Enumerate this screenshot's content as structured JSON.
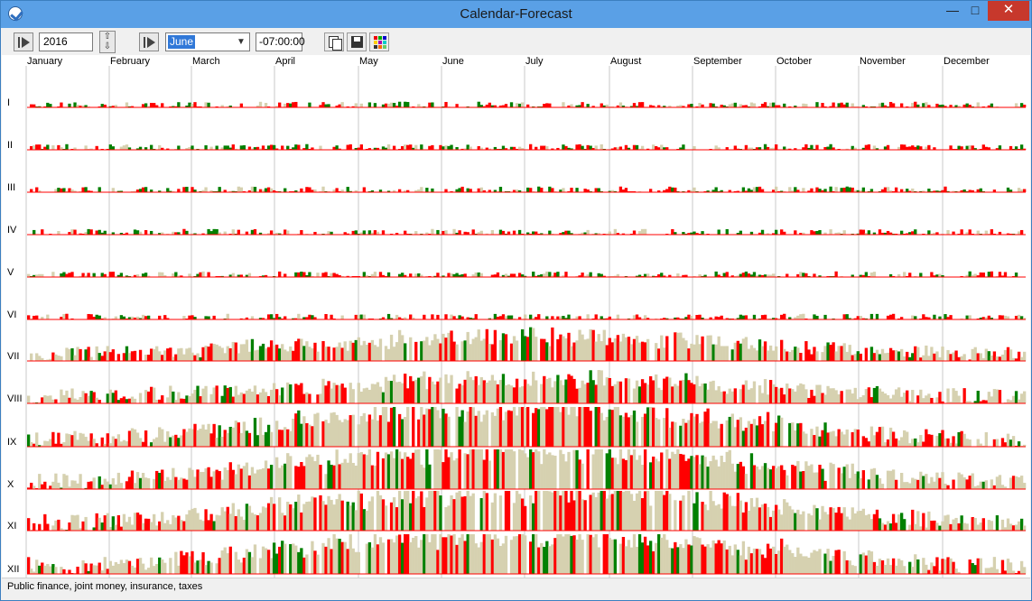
{
  "window": {
    "title": "Calendar-Forecast",
    "minimize": "—",
    "maximize": "□",
    "close": "✕"
  },
  "toolbar": {
    "year": "2016",
    "year_spin_up": "⇧",
    "year_spin_down": "⇩",
    "month": "June",
    "offset": "-07:00:00",
    "icons": [
      "play-icon",
      "play-icon",
      "copy-icon",
      "save-icon",
      "color-grid-icon"
    ]
  },
  "chart_data": {
    "type": "bar",
    "months": [
      "January",
      "February",
      "March",
      "April",
      "May",
      "June",
      "July",
      "August",
      "September",
      "October",
      "November",
      "December"
    ],
    "rows": [
      "I",
      "II",
      "III",
      "IV",
      "V",
      "VI",
      "VII",
      "VIII",
      "IX",
      "X",
      "XI",
      "XII"
    ],
    "series_colors": {
      "red": "#ff0000",
      "green": "#008000",
      "tan": "#d6d1b0"
    }
  },
  "status": {
    "text": "Public finance, joint money, insurance, taxes"
  }
}
